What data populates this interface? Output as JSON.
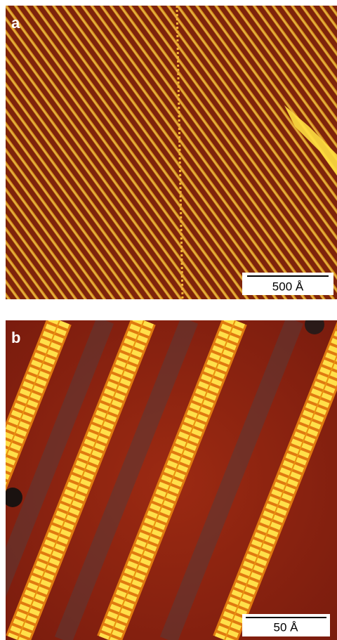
{
  "panels": [
    {
      "label": "a",
      "scale_bar": "500 Å"
    },
    {
      "label": "b",
      "scale_bar": "50 Å"
    }
  ]
}
